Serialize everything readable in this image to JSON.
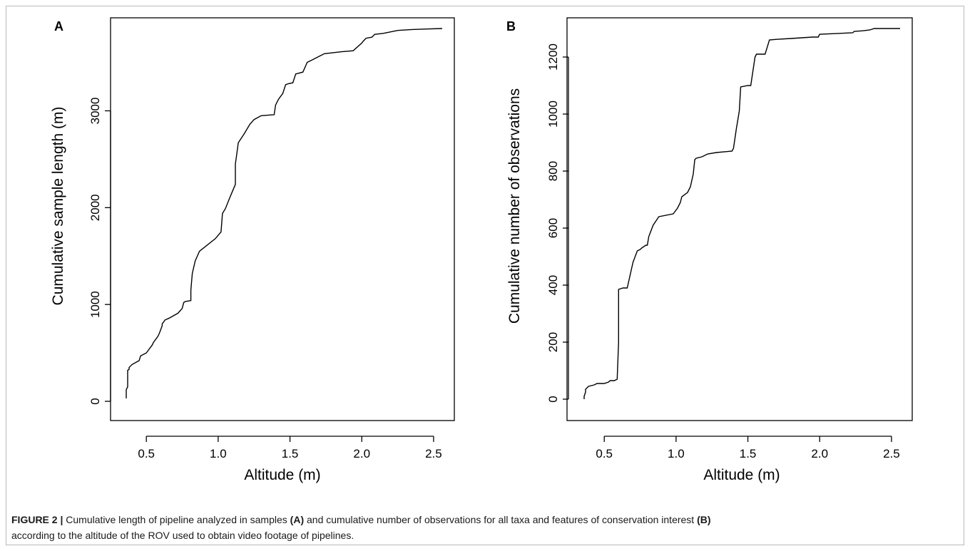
{
  "caption": {
    "label": "FIGURE 2 |",
    "part1": " Cumulative length of pipeline analyzed in samples ",
    "ref_a": "(A)",
    "part2": " and cumulative number of observations for all taxa and features of conservation interest ",
    "ref_b": "(B)",
    "part3": " according to the altitude of the ROV used to obtain video footage of pipelines."
  },
  "chart_data": [
    {
      "type": "line",
      "panel": "A",
      "xlabel": "Altitude (m)",
      "ylabel": "Cumulative sample length (m)",
      "xlim": [
        0.35,
        2.56
      ],
      "ylim": [
        0,
        3850
      ],
      "xticks": [
        0.5,
        1.0,
        1.5,
        2.0,
        2.5
      ],
      "xtick_labels": [
        "0.5",
        "1.0",
        "1.5",
        "2.0",
        "2.5"
      ],
      "yticks": [
        0,
        1000,
        2000,
        3000
      ],
      "ytick_labels": [
        "0",
        "1000",
        "2000",
        "3000"
      ],
      "grid": false,
      "x": [
        0.36,
        0.36,
        0.37,
        0.37,
        0.38,
        0.38,
        0.4,
        0.45,
        0.46,
        0.5,
        0.52,
        0.54,
        0.55,
        0.58,
        0.59,
        0.61,
        0.61,
        0.63,
        0.66,
        0.72,
        0.75,
        0.76,
        0.77,
        0.81,
        0.81,
        0.82,
        0.84,
        0.87,
        0.98,
        1.02,
        1.03,
        1.05,
        1.08,
        1.1,
        1.12,
        1.12,
        1.13,
        1.14,
        1.18,
        1.22,
        1.25,
        1.3,
        1.39,
        1.4,
        1.42,
        1.45,
        1.47,
        1.49,
        1.52,
        1.54,
        1.59,
        1.62,
        1.66,
        1.7,
        1.74,
        1.86,
        1.94,
        2.0,
        2.01,
        2.03,
        2.07,
        2.09,
        2.15,
        2.25,
        2.35,
        2.45,
        2.56
      ],
      "y": [
        30,
        120,
        150,
        320,
        330,
        350,
        380,
        420,
        470,
        500,
        540,
        580,
        610,
        670,
        700,
        780,
        800,
        840,
        860,
        910,
        960,
        1020,
        1030,
        1040,
        1150,
        1320,
        1450,
        1550,
        1680,
        1750,
        1940,
        1990,
        2100,
        2170,
        2240,
        2450,
        2560,
        2670,
        2760,
        2860,
        2910,
        2950,
        2960,
        3060,
        3120,
        3180,
        3270,
        3280,
        3290,
        3380,
        3400,
        3500,
        3530,
        3560,
        3590,
        3610,
        3620,
        3700,
        3720,
        3750,
        3760,
        3790,
        3800,
        3830,
        3840,
        3845,
        3850
      ]
    },
    {
      "type": "line",
      "panel": "B",
      "xlabel": "Altitude (m)",
      "ylabel": "Cumulative number of observations",
      "xlim": [
        0.35,
        2.56
      ],
      "ylim": [
        0,
        1300
      ],
      "xticks": [
        0.5,
        1.0,
        1.5,
        2.0,
        2.5
      ],
      "xtick_labels": [
        "0.5",
        "1.0",
        "1.5",
        "2.0",
        "2.5"
      ],
      "yticks": [
        0,
        200,
        400,
        600,
        800,
        1000,
        1200
      ],
      "ytick_labels": [
        "0",
        "200",
        "400",
        "600",
        "800",
        "1000",
        "1200"
      ],
      "grid": false,
      "x": [
        0.36,
        0.36,
        0.37,
        0.37,
        0.39,
        0.43,
        0.45,
        0.5,
        0.53,
        0.54,
        0.57,
        0.59,
        0.6,
        0.6,
        0.63,
        0.66,
        0.7,
        0.73,
        0.75,
        0.76,
        0.79,
        0.8,
        0.81,
        0.84,
        0.88,
        0.98,
        1.01,
        1.02,
        1.03,
        1.04,
        1.08,
        1.1,
        1.12,
        1.13,
        1.14,
        1.18,
        1.22,
        1.28,
        1.39,
        1.4,
        1.42,
        1.44,
        1.45,
        1.5,
        1.52,
        1.55,
        1.56,
        1.62,
        1.65,
        1.7,
        1.8,
        1.95,
        1.99,
        2.0,
        2.1,
        2.23,
        2.24,
        2.3,
        2.35,
        2.38,
        2.45,
        2.56
      ],
      "y": [
        0,
        10,
        25,
        35,
        45,
        50,
        55,
        55,
        60,
        65,
        65,
        70,
        200,
        385,
        390,
        390,
        480,
        520,
        525,
        530,
        540,
        540,
        570,
        610,
        640,
        650,
        670,
        680,
        690,
        710,
        725,
        745,
        790,
        840,
        845,
        850,
        860,
        865,
        870,
        880,
        950,
        1010,
        1095,
        1100,
        1100,
        1200,
        1210,
        1210,
        1260,
        1262,
        1265,
        1270,
        1270,
        1280,
        1282,
        1285,
        1290,
        1292,
        1295,
        1300,
        1300,
        1300
      ]
    }
  ]
}
